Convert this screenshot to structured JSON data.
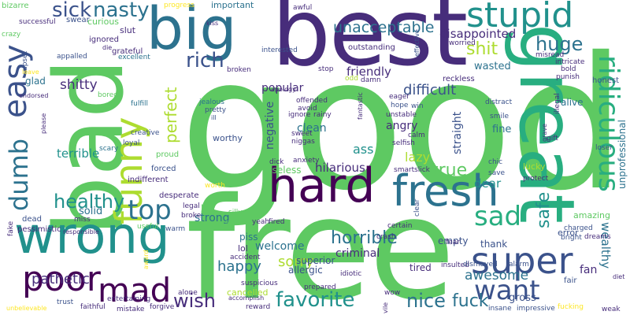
{
  "colors": {
    "background": "#ffffff",
    "palette": [
      "#440154",
      "#472d7b",
      "#3b528b",
      "#2c728e",
      "#21918c",
      "#28ae80",
      "#5ec962",
      "#addc30",
      "#fde725"
    ]
  },
  "words": [
    "good",
    "free",
    "bad",
    "best",
    "great",
    "big",
    "wrong",
    "hard",
    "fresh",
    "funny",
    "super",
    "poor",
    "stupid",
    "mad",
    "easy",
    "ridiculous",
    "sad",
    "top",
    "want",
    "dumb",
    "favorite",
    "sick",
    "rich",
    "nasty",
    "wish",
    "horrible",
    "nice",
    "fuck",
    "healthy",
    "huge",
    "shit",
    "true",
    "unacceptable",
    "sorry",
    "happy",
    "safe",
    "awesome",
    "pathetic",
    "perfect",
    "difficult",
    "disappointed",
    "shitty",
    "terrible",
    "friendly",
    "popular",
    "negative",
    "lazy",
    "hilarious",
    "dear",
    "wasted",
    "straight",
    "clean",
    "angry",
    "ass",
    "fine",
    "strong",
    "solid",
    "welcome",
    "useless",
    "superior",
    "criminal",
    "allergic",
    "tired",
    "lol",
    "gross",
    "wealthy",
    "unprofessional",
    "fan",
    "alive",
    "amazing",
    "glad",
    "piss",
    "empty",
    "thank",
    "cancelled",
    "sick",
    "important",
    "progress",
    "curious",
    "swear",
    "slut",
    "bizarre",
    "upset",
    "honest",
    "crazy",
    "successful",
    "grateful",
    "excellent",
    "appalled",
    "die",
    "ignored",
    "bored",
    "fulfill",
    "jealous",
    "pretty",
    "ill",
    "creative",
    "loyal",
    "scary",
    "proud",
    "forced",
    "indifferent",
    "worthy",
    "broke",
    "legal",
    "silly",
    "desperate",
    "fake",
    "dead",
    "pessimistic",
    "responsible",
    "miss",
    "useful",
    "warm",
    "active",
    "yeah",
    "fired",
    "certain",
    "crash",
    "insulted",
    "dismayed",
    "fear",
    "clear",
    "alarm",
    "insane",
    "impressive",
    "fair",
    "error",
    "charged",
    "bright",
    "dreams",
    "weak",
    "diet",
    "awful",
    "effective",
    "worried",
    "misread",
    "outstanding",
    "intricate",
    "punish",
    "bold",
    "broken",
    "interested",
    "apology",
    "odd",
    "damn",
    "eager",
    "reckless",
    "stop",
    "hope",
    "win",
    "offended",
    "avoid",
    "ignore",
    "rainy",
    "unstable",
    "sweet",
    "niggas",
    "calm",
    "selfish",
    "distract",
    "smile",
    "illegal",
    "gift",
    "grave",
    "loser",
    "chic",
    "protect",
    "lucky",
    "save",
    "smart",
    "slick",
    "anxiety",
    "dick",
    "worth",
    "accident",
    "suspicious",
    "prepared",
    "accomplish",
    "reward",
    "forgive",
    "trust",
    "faithful",
    "mistake",
    "alone",
    "entertaining",
    "unbelievable",
    "award",
    "fucking",
    "vile",
    "wow",
    "idiotic",
    "kiss",
    "leave",
    "endorsed",
    "please",
    "fantastic"
  ]
}
